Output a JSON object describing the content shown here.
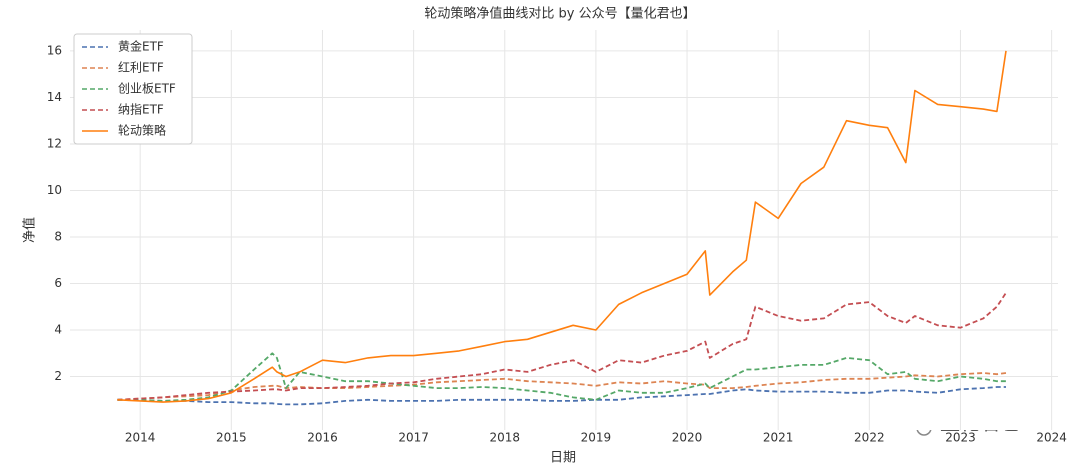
{
  "chart_data": {
    "type": "line",
    "title": "轮动策略净值曲线对比 by 公众号【量化君也】",
    "x_label": "日期",
    "y_label": "净值",
    "watermark": "量化君也",
    "x": [
      2013.75,
      2014.0,
      2014.25,
      2014.5,
      2014.75,
      2015.0,
      2015.25,
      2015.45,
      2015.5,
      2015.6,
      2015.75,
      2016.0,
      2016.25,
      2016.5,
      2016.75,
      2017.0,
      2017.25,
      2017.5,
      2017.75,
      2018.0,
      2018.25,
      2018.5,
      2018.75,
      2019.0,
      2019.25,
      2019.5,
      2019.75,
      2020.0,
      2020.2,
      2020.25,
      2020.5,
      2020.65,
      2020.75,
      2021.0,
      2021.25,
      2021.5,
      2021.75,
      2022.0,
      2022.2,
      2022.4,
      2022.5,
      2022.75,
      2023.0,
      2023.25,
      2023.4,
      2023.5
    ],
    "series": [
      {
        "name": "黄金ETF",
        "color": "#4c72b0",
        "dashed": true,
        "values": [
          1.0,
          1.0,
          0.95,
          0.95,
          0.9,
          0.9,
          0.85,
          0.85,
          0.82,
          0.8,
          0.8,
          0.85,
          0.95,
          1.0,
          0.95,
          0.95,
          0.95,
          1.0,
          1.0,
          1.0,
          1.0,
          0.95,
          0.95,
          1.0,
          1.0,
          1.1,
          1.15,
          1.2,
          1.25,
          1.25,
          1.4,
          1.45,
          1.4,
          1.35,
          1.35,
          1.35,
          1.3,
          1.3,
          1.4,
          1.4,
          1.35,
          1.3,
          1.45,
          1.5,
          1.55,
          1.55
        ]
      },
      {
        "name": "红利ETF",
        "color": "#dd8452",
        "dashed": true,
        "values": [
          1.0,
          1.05,
          1.1,
          1.15,
          1.2,
          1.4,
          1.55,
          1.6,
          1.6,
          1.5,
          1.55,
          1.5,
          1.5,
          1.55,
          1.6,
          1.65,
          1.75,
          1.8,
          1.85,
          1.9,
          1.8,
          1.75,
          1.7,
          1.6,
          1.75,
          1.7,
          1.8,
          1.7,
          1.65,
          1.5,
          1.5,
          1.55,
          1.6,
          1.7,
          1.75,
          1.85,
          1.9,
          1.9,
          1.95,
          2.0,
          2.05,
          2.0,
          2.1,
          2.15,
          2.1,
          2.15
        ]
      },
      {
        "name": "创业板ETF",
        "color": "#55a868",
        "dashed": true,
        "values": [
          1.0,
          1.0,
          0.95,
          1.0,
          1.1,
          1.4,
          2.3,
          3.0,
          2.8,
          1.5,
          2.2,
          2.0,
          1.8,
          1.8,
          1.7,
          1.6,
          1.5,
          1.5,
          1.55,
          1.5,
          1.4,
          1.3,
          1.1,
          1.0,
          1.4,
          1.3,
          1.3,
          1.5,
          1.7,
          1.5,
          2.0,
          2.3,
          2.3,
          2.4,
          2.5,
          2.5,
          2.8,
          2.7,
          2.1,
          2.2,
          1.9,
          1.8,
          2.0,
          1.9,
          1.8,
          1.8
        ]
      },
      {
        "name": "纳指ETF",
        "color": "#c44e52",
        "dashed": true,
        "values": [
          1.0,
          1.05,
          1.1,
          1.2,
          1.3,
          1.35,
          1.4,
          1.45,
          1.45,
          1.4,
          1.5,
          1.5,
          1.55,
          1.6,
          1.7,
          1.75,
          1.9,
          2.0,
          2.1,
          2.3,
          2.2,
          2.5,
          2.7,
          2.2,
          2.7,
          2.6,
          2.9,
          3.1,
          3.5,
          2.8,
          3.4,
          3.6,
          5.0,
          4.6,
          4.4,
          4.5,
          5.1,
          5.2,
          4.6,
          4.3,
          4.6,
          4.2,
          4.1,
          4.5,
          5.0,
          5.6
        ]
      },
      {
        "name": "轮动策略",
        "color": "#ff7f0e",
        "dashed": false,
        "values": [
          1.0,
          0.95,
          0.9,
          0.95,
          1.05,
          1.3,
          1.9,
          2.4,
          2.2,
          2.0,
          2.2,
          2.7,
          2.6,
          2.8,
          2.9,
          2.9,
          3.0,
          3.1,
          3.3,
          3.5,
          3.6,
          3.9,
          4.2,
          4.0,
          5.1,
          5.6,
          6.0,
          6.4,
          7.4,
          5.5,
          6.5,
          7.0,
          9.5,
          8.8,
          10.3,
          11.0,
          13.0,
          12.8,
          12.7,
          11.2,
          14.3,
          13.7,
          13.6,
          13.5,
          13.4,
          16.0
        ]
      }
    ],
    "xlim": [
      2013.23,
      2024.07
    ],
    "ylim": [
      -0.3,
      16.9
    ],
    "xticks": [
      2014,
      2015,
      2016,
      2017,
      2018,
      2019,
      2020,
      2021,
      2022,
      2023,
      2024
    ],
    "yticks": [
      2,
      4,
      6,
      8,
      10,
      12,
      14,
      16
    ],
    "grid": true,
    "legend": "upper left"
  }
}
